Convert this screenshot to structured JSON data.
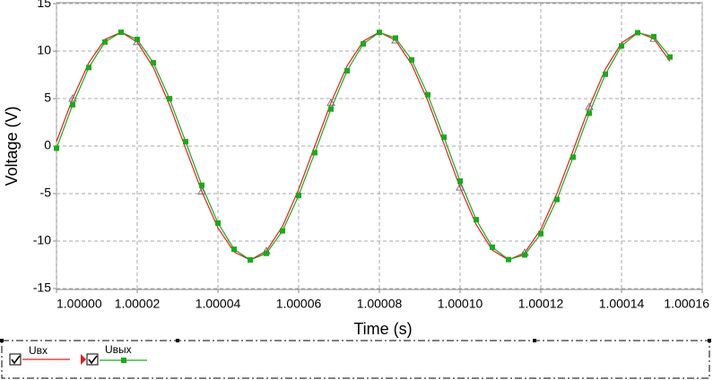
{
  "chart_data": {
    "type": "line",
    "xlabel": "Time (s)",
    "ylabel": "Voltage (V)",
    "xlim": [
      1.0,
      1.00016
    ],
    "ylim": [
      -15.1,
      15.1
    ],
    "xticks": [
      {
        "value": 1.0,
        "label": "1.00000"
      },
      {
        "value": 1.00002,
        "label": "1.00002"
      },
      {
        "value": 1.00004,
        "label": "1.00004"
      },
      {
        "value": 1.00006,
        "label": "1.00006"
      },
      {
        "value": 1.00008,
        "label": "1.00008"
      },
      {
        "value": 1.0001,
        "label": "1.00010"
      },
      {
        "value": 1.00012,
        "label": "1.00012"
      },
      {
        "value": 1.00014,
        "label": "1.00014"
      },
      {
        "value": 1.00016,
        "label": "1.00016"
      }
    ],
    "yticks": [
      -15,
      -10,
      -5,
      0,
      5,
      10,
      15
    ],
    "grid": true,
    "x": [
      1.0,
      1.000004,
      1.000008,
      1.000012,
      1.000016,
      1.00002,
      1.000024,
      1.000028,
      1.000032,
      1.000036,
      1.00004,
      1.000044,
      1.000048,
      1.000052,
      1.000056,
      1.00006,
      1.000064,
      1.000068,
      1.000072,
      1.000076,
      1.00008,
      1.000084,
      1.000088,
      1.000092,
      1.000096,
      1.0001,
      1.000104,
      1.000108,
      1.000112,
      1.000116,
      1.00012,
      1.000124,
      1.000128,
      1.000132,
      1.000136,
      1.00014,
      1.000144,
      1.000148,
      1.000152
    ],
    "series": [
      {
        "name": "Uвх",
        "color": "#e02020",
        "values": [
          0.47,
          5.0,
          8.77,
          11.23,
          11.99,
          10.96,
          8.28,
          4.35,
          -0.24,
          -4.78,
          -8.61,
          -11.14,
          -12.0,
          -11.05,
          -8.44,
          -4.56,
          0.0,
          4.56,
          8.44,
          11.05,
          12.0,
          11.14,
          8.61,
          4.78,
          0.23,
          -4.35,
          -8.28,
          -10.96,
          -11.99,
          -11.23,
          -8.77,
          -4.99,
          -0.47,
          4.13,
          8.11,
          10.86,
          11.99,
          11.31,
          8.93
        ]
      },
      {
        "name": "Uвых",
        "color": "#1aaa1a",
        "values": [
          -0.23,
          4.35,
          8.27,
          10.96,
          11.99,
          11.23,
          8.77,
          4.99,
          0.46,
          -4.13,
          -8.1,
          -10.86,
          -11.99,
          -11.3,
          -8.93,
          -5.2,
          -0.7,
          3.9,
          7.93,
          10.76,
          11.97,
          11.38,
          9.08,
          5.41,
          0.93,
          -3.69,
          -7.75,
          -10.65,
          -11.95,
          -11.46,
          -9.23,
          -5.62,
          -1.17,
          3.46,
          7.57,
          10.54,
          11.94,
          11.53,
          9.38
        ]
      }
    ]
  }
}
